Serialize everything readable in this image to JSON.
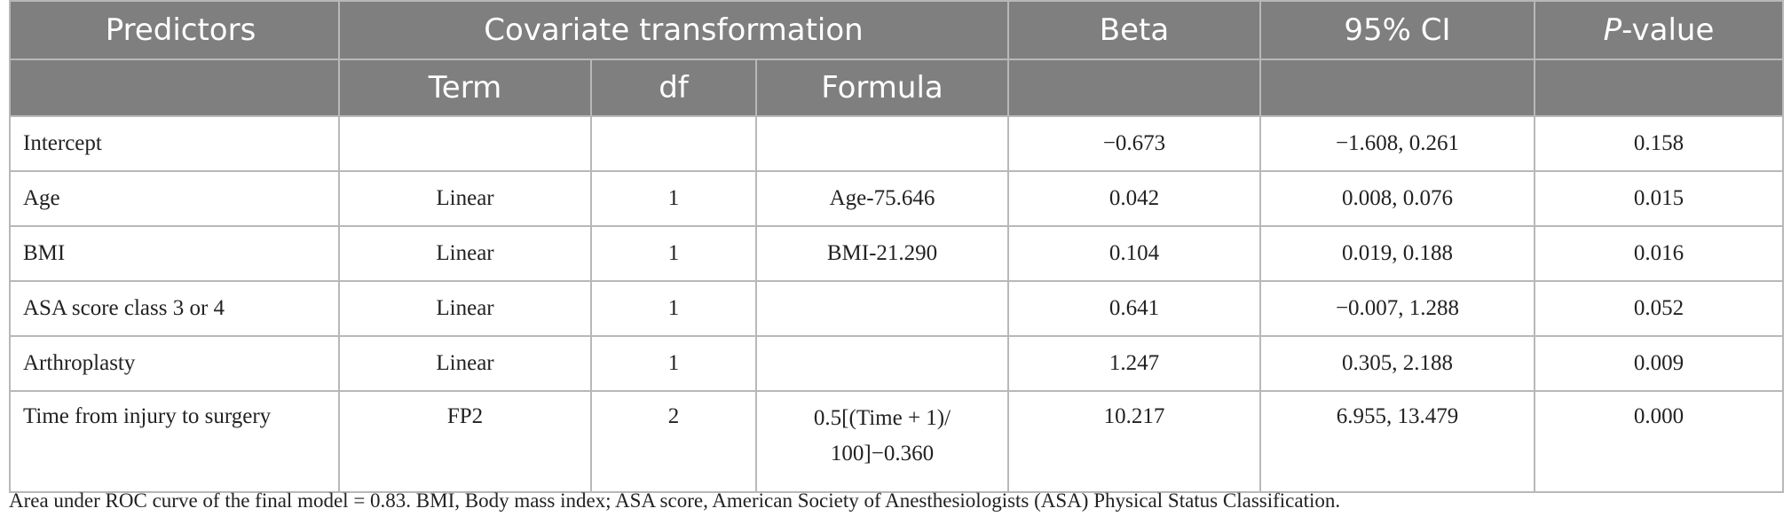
{
  "header": {
    "predictors": "Predictors",
    "covariate_transformation": "Covariate transformation",
    "beta": "Beta",
    "ci": "95% CI",
    "pvalue_italic": "P",
    "pvalue_rest": "-value",
    "term": "Term",
    "df": "df",
    "formula": "Formula"
  },
  "rows": [
    {
      "predictor": "Intercept",
      "term": "",
      "df": "",
      "formula": "",
      "beta": "−0.673",
      "ci": "−1.608, 0.261",
      "p": "0.158"
    },
    {
      "predictor": "Age",
      "term": "Linear",
      "df": "1",
      "formula": "Age-75.646",
      "beta": "0.042",
      "ci": "0.008, 0.076",
      "p": "0.015"
    },
    {
      "predictor": "BMI",
      "term": "Linear",
      "df": "1",
      "formula": "BMI-21.290",
      "beta": "0.104",
      "ci": "0.019, 0.188",
      "p": "0.016"
    },
    {
      "predictor": "ASA score class 3 or 4",
      "term": "Linear",
      "df": "1",
      "formula": "",
      "beta": "0.641",
      "ci": "−0.007, 1.288",
      "p": "0.052"
    },
    {
      "predictor": "Arthroplasty",
      "term": "Linear",
      "df": "1",
      "formula": "",
      "beta": "1.247",
      "ci": "0.305, 2.188",
      "p": "0.009"
    },
    {
      "predictor": "Time from injury to surgery",
      "term": "FP2",
      "df": "2",
      "formula_line1": "0.5[(Time + 1)/",
      "formula_line2": "100]−0.360",
      "beta": "10.217",
      "ci": "6.955, 13.479",
      "p": "0.000"
    }
  ],
  "footnote": "Area under ROC curve of the final model = 0.83. BMI, Body mass index; ASA score, American Society of Anesthesiologists (ASA) Physical Status Classification."
}
